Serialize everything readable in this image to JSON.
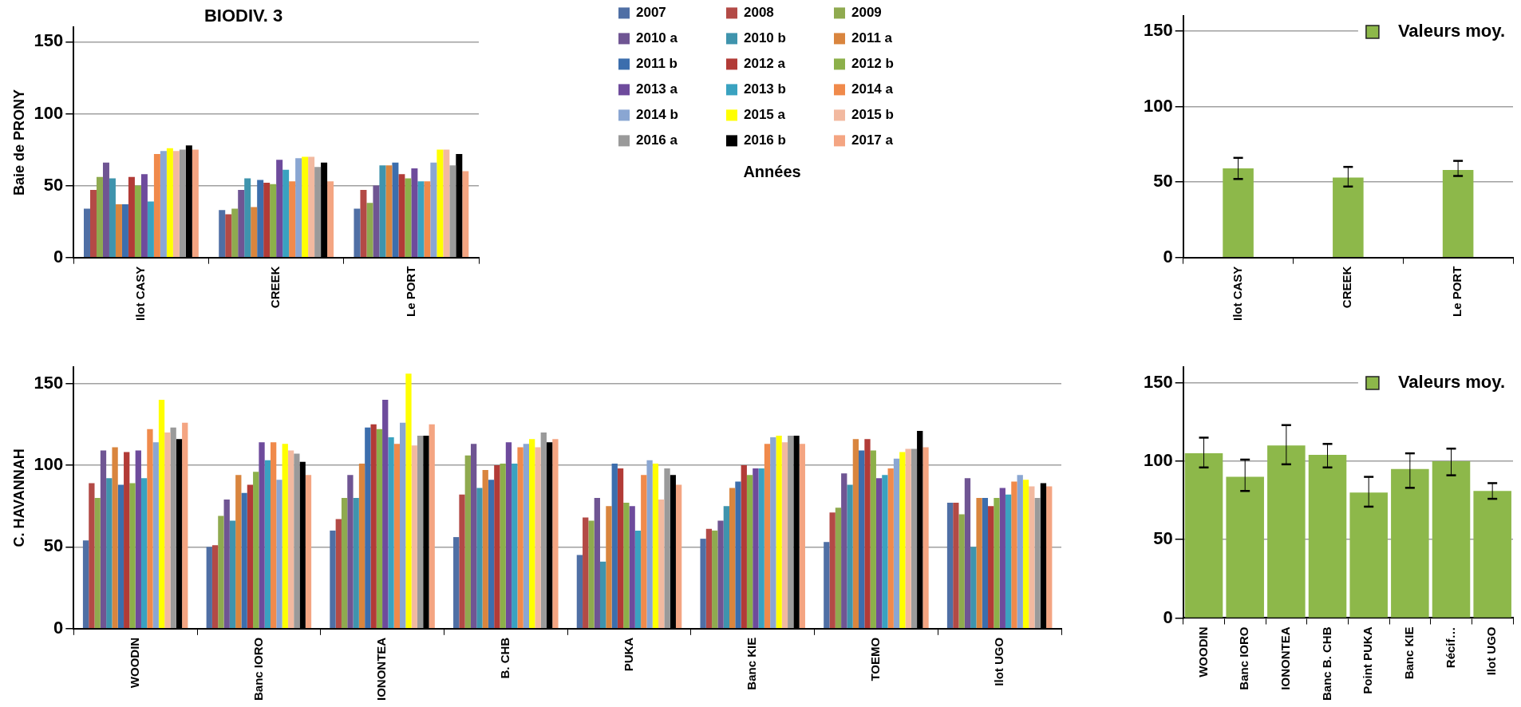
{
  "chart_data": [
    {
      "type": "bar",
      "title": "BIODIV. 3",
      "ylabel": "Baie de PRONY",
      "legend_title": "Années",
      "categories": [
        "Ilot CASY",
        "CREEK",
        "Le PORT"
      ],
      "ylim": [
        0,
        160
      ],
      "yticks": [
        0,
        50,
        100,
        150
      ],
      "grid": "y",
      "legend": "right",
      "series": [
        {
          "name": "2007",
          "color": "#4f6fa5",
          "values": [
            34,
            33,
            34
          ]
        },
        {
          "name": "2008",
          "color": "#b34a46",
          "values": [
            47,
            30,
            47
          ]
        },
        {
          "name": "2009",
          "color": "#8faa4f",
          "values": [
            56,
            34,
            38
          ]
        },
        {
          "name": "2010 a",
          "color": "#6f5593",
          "values": [
            66,
            47,
            50
          ]
        },
        {
          "name": "2010 b",
          "color": "#3f94ad",
          "values": [
            55,
            55,
            64
          ]
        },
        {
          "name": "2011 a",
          "color": "#d9853e",
          "values": [
            37,
            35,
            64
          ]
        },
        {
          "name": "2011 b",
          "color": "#3c6ead",
          "values": [
            37,
            54,
            66
          ]
        },
        {
          "name": "2012 a",
          "color": "#b23b37",
          "values": [
            56,
            52,
            58
          ]
        },
        {
          "name": "2012 b",
          "color": "#8cb04a",
          "values": [
            50,
            51,
            55
          ]
        },
        {
          "name": "2013 a",
          "color": "#6e4b9c",
          "values": [
            58,
            68,
            62
          ]
        },
        {
          "name": "2013 b",
          "color": "#3aa2c0",
          "values": [
            39,
            61,
            53
          ]
        },
        {
          "name": "2014 a",
          "color": "#f08a4b",
          "values": [
            72,
            53,
            53
          ]
        },
        {
          "name": "2014 b",
          "color": "#8aa6d2",
          "values": [
            74,
            69,
            66
          ]
        },
        {
          "name": "2015 a",
          "color": "#ffff00",
          "values": [
            76,
            70,
            75
          ]
        },
        {
          "name": "2015 b",
          "color": "#f2b9a0",
          "values": [
            74,
            70,
            75
          ]
        },
        {
          "name": "2016 a",
          "color": "#9a9a9a",
          "values": [
            75,
            63,
            64
          ]
        },
        {
          "name": "2016 b",
          "color": "#000000",
          "values": [
            78,
            66,
            72
          ]
        },
        {
          "name": "2017 a",
          "color": "#f4a582",
          "values": [
            75,
            53,
            60
          ]
        }
      ]
    },
    {
      "type": "bar",
      "categories": [
        "Ilot CASY",
        "CREEK",
        "Le PORT"
      ],
      "ylim": [
        0,
        160
      ],
      "yticks": [
        0,
        50,
        100,
        150
      ],
      "grid": "y",
      "legend": "top right",
      "series": [
        {
          "name": "Valeurs moy.",
          "color": "#8db84a",
          "values": [
            59,
            53,
            58
          ],
          "errors": [
            [
              52,
              66
            ],
            [
              47,
              60
            ],
            [
              54,
              64
            ]
          ]
        }
      ]
    },
    {
      "type": "bar",
      "ylabel": "C. HAVANNAH",
      "categories": [
        "WOODIN",
        "Banc IORO",
        "IONONTEA",
        "B. CHB",
        "PUKA",
        "Banc KIE",
        "TOEMO",
        "Ilot UGO"
      ],
      "ylim": [
        0,
        160
      ],
      "yticks": [
        0,
        50,
        100,
        150
      ],
      "grid": "y",
      "series": [
        {
          "color": "#4f6fa5",
          "values": [
            54,
            50,
            60,
            56,
            45,
            55,
            53,
            77
          ]
        },
        {
          "color": "#b34a46",
          "values": [
            89,
            51,
            67,
            82,
            68,
            61,
            71,
            77
          ]
        },
        {
          "color": "#8faa4f",
          "values": [
            80,
            69,
            80,
            106,
            66,
            60,
            74,
            70
          ]
        },
        {
          "color": "#6f5593",
          "values": [
            109,
            79,
            94,
            113,
            80,
            66,
            95,
            92
          ]
        },
        {
          "color": "#3f94ad",
          "values": [
            92,
            66,
            80,
            86,
            41,
            75,
            88,
            50
          ]
        },
        {
          "color": "#d9853e",
          "values": [
            111,
            94,
            101,
            97,
            75,
            86,
            116,
            80
          ]
        },
        {
          "color": "#3c6ead",
          "values": [
            88,
            83,
            123,
            91,
            101,
            90,
            109,
            80
          ]
        },
        {
          "color": "#b23b37",
          "values": [
            108,
            88,
            125,
            100,
            98,
            100,
            116,
            75
          ]
        },
        {
          "color": "#8cb04a",
          "values": [
            89,
            96,
            122,
            101,
            77,
            94,
            109,
            80
          ]
        },
        {
          "color": "#6e4b9c",
          "values": [
            109,
            114,
            140,
            114,
            75,
            98,
            92,
            86
          ]
        },
        {
          "color": "#3aa2c0",
          "values": [
            92,
            103,
            117,
            101,
            60,
            98,
            94,
            82
          ]
        },
        {
          "color": "#f08a4b",
          "values": [
            122,
            114,
            113,
            111,
            94,
            113,
            98,
            90
          ]
        },
        {
          "color": "#8aa6d2",
          "values": [
            114,
            91,
            126,
            113,
            103,
            117,
            104,
            94
          ]
        },
        {
          "color": "#ffff00",
          "values": [
            140,
            113,
            156,
            116,
            101,
            118,
            108,
            91
          ]
        },
        {
          "color": "#f2b9a0",
          "values": [
            120,
            109,
            112,
            111,
            79,
            114,
            110,
            87
          ]
        },
        {
          "color": "#9a9a9a",
          "values": [
            123,
            107,
            118,
            120,
            98,
            118,
            110,
            80
          ]
        },
        {
          "color": "#000000",
          "values": [
            116,
            102,
            118,
            114,
            94,
            118,
            121,
            89
          ]
        },
        {
          "color": "#f4a582",
          "values": [
            126,
            94,
            125,
            116,
            88,
            113,
            111,
            87
          ]
        }
      ]
    },
    {
      "type": "bar",
      "categories": [
        "WOODIN",
        "Banc IORO",
        "IONONTEA",
        "Banc B. CHB",
        "Point PUKA",
        "Banc KIE",
        "Récif…",
        "Ilot UGO"
      ],
      "ylim": [
        0,
        160
      ],
      "yticks": [
        0,
        50,
        100,
        150
      ],
      "grid": "y",
      "legend": "top right",
      "series": [
        {
          "name": "Valeurs moy.",
          "color": "#8db84a",
          "values": [
            105,
            90,
            110,
            104,
            80,
            95,
            100,
            81
          ],
          "errors": [
            [
              96,
              115
            ],
            [
              81,
              101
            ],
            [
              98,
              123
            ],
            [
              96,
              111
            ],
            [
              71,
              90
            ],
            [
              83,
              105
            ],
            [
              91,
              108
            ],
            [
              76,
              86
            ]
          ]
        }
      ]
    }
  ]
}
